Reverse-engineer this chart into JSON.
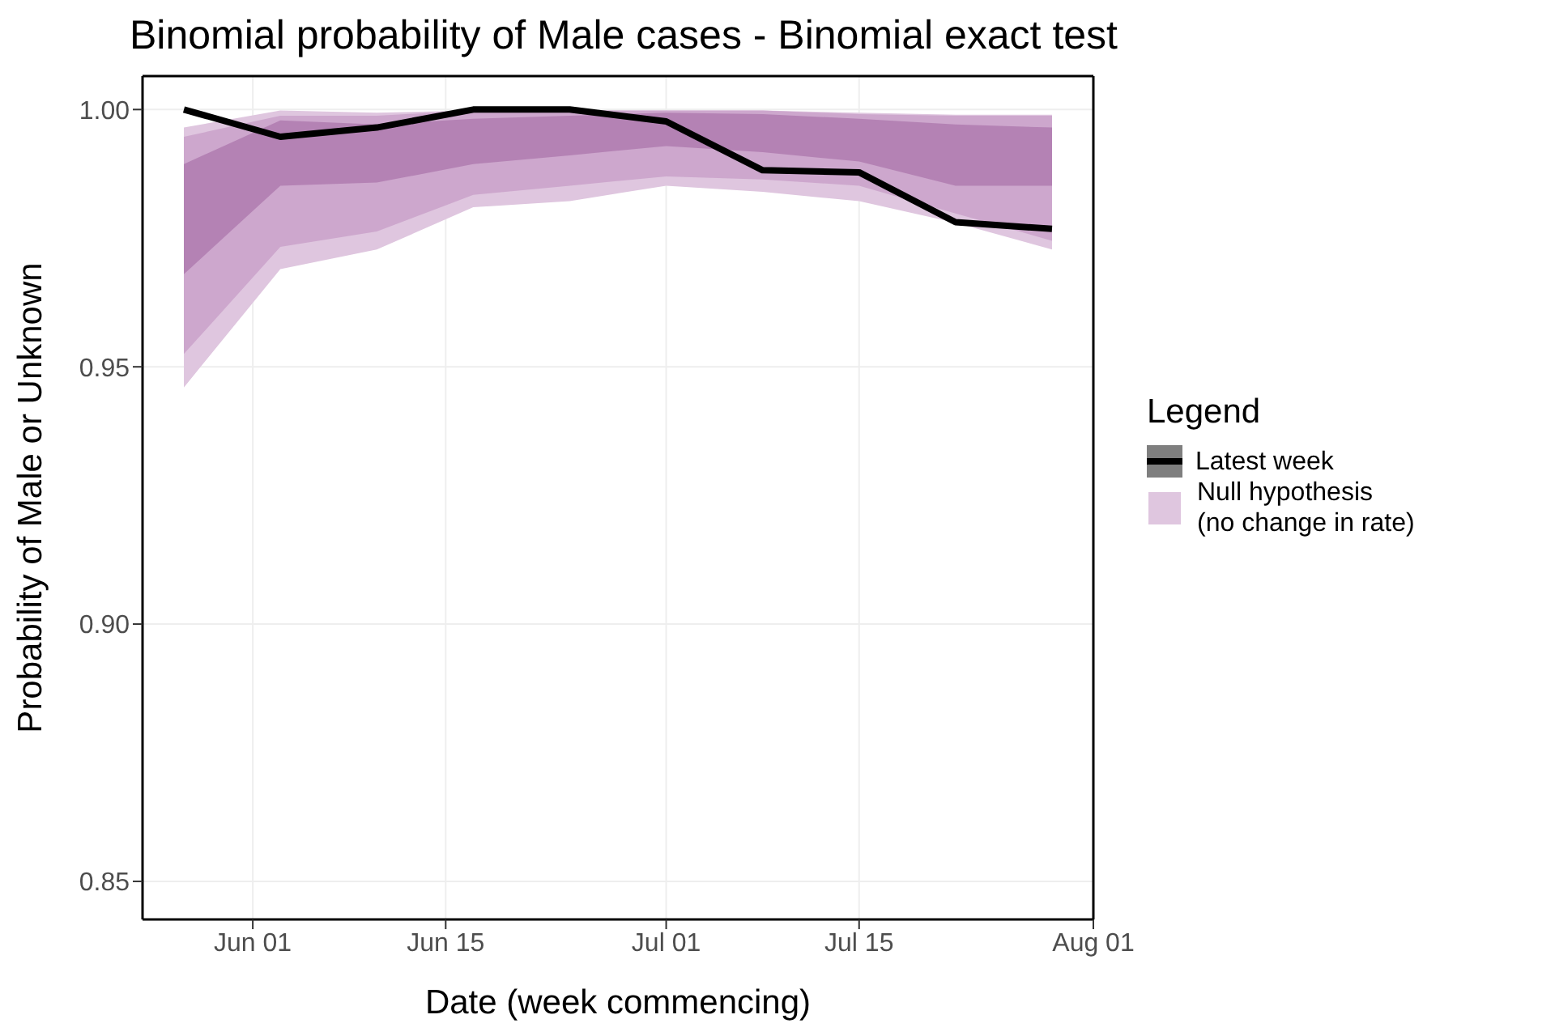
{
  "chart_data": {
    "type": "line",
    "title": "Binomial probability of Male cases - Binomial exact test",
    "xlabel": "Date (week commencing)",
    "ylabel": "Probability of Male or Unknown",
    "legend_title": "Legend",
    "x": [
      "--05-27",
      "--06-03",
      "--06-10",
      "--06-17",
      "--06-24",
      "--07-01",
      "--07-08",
      "--07-15",
      "--07-22",
      "--07-29"
    ],
    "series": [
      {
        "type": "area",
        "name": "Null hypothesis\n(no change in rate)",
        "color": "#dfc6df",
        "values": [
          null,
          null,
          null,
          null,
          null,
          null,
          null,
          null,
          null,
          null
        ],
        "lower": [
          0.946,
          0.969,
          0.9728,
          0.981,
          0.9822,
          0.9852,
          0.984,
          0.9822,
          0.978,
          0.9728
        ],
        "upper": [
          0.9965,
          0.9998,
          0.9994,
          0.9998,
          0.9998,
          0.9998,
          0.9998,
          0.9994,
          0.999,
          0.999
        ]
      },
      {
        "type": "area",
        "color": "#cda7cd",
        "values": [
          null,
          null,
          null,
          null,
          null,
          null,
          null,
          null,
          null,
          null
        ],
        "lower": [
          0.9525,
          0.9733,
          0.9763,
          0.9834,
          0.9852,
          0.987,
          0.9864,
          0.9852,
          0.9798,
          0.9745
        ],
        "upper": [
          0.9947,
          0.9988,
          0.9988,
          0.9998,
          0.9998,
          0.9998,
          0.9998,
          0.9991,
          0.9988,
          0.9988
        ]
      },
      {
        "type": "area",
        "color": "#b482b4",
        "values": [
          null,
          null,
          null,
          null,
          null,
          null,
          null,
          null,
          null,
          null
        ],
        "lower": [
          0.968,
          0.9852,
          0.9858,
          0.9894,
          0.9911,
          0.9929,
          0.9917,
          0.9899,
          0.9852,
          0.9852
        ],
        "upper": [
          0.9894,
          0.9979,
          0.9971,
          0.9982,
          0.9988,
          0.9994,
          0.9991,
          0.9982,
          0.9971,
          0.9965
        ]
      },
      {
        "type": "line",
        "name": "Latest week",
        "color": "#000000",
        "values": [
          1.0,
          0.9947,
          0.9965,
          1.0,
          1.0,
          0.9977,
          0.9882,
          0.9878,
          0.9781,
          0.9768
        ]
      }
    ],
    "xlim": [
      "--05-24",
      "--08-01"
    ],
    "xticks": [
      {
        "value": "--06-01",
        "label": "Jun 01"
      },
      {
        "value": "--06-15",
        "label": "Jun 15"
      },
      {
        "value": "--07-01",
        "label": "Jul 01"
      },
      {
        "value": "--07-15",
        "label": "Jul 15"
      },
      {
        "value": "--08-01",
        "label": "Aug 01"
      }
    ],
    "ylim": [
      0.8426,
      1.0065
    ],
    "yticks": [
      {
        "value": 0.85,
        "label": "0.85"
      },
      {
        "value": 0.9,
        "label": "0.90"
      },
      {
        "value": 0.95,
        "label": "0.95"
      },
      {
        "value": 1.0,
        "label": "1.00"
      }
    ],
    "grid": true,
    "legend": "right",
    "marker": "none",
    "line_style": "solid"
  }
}
